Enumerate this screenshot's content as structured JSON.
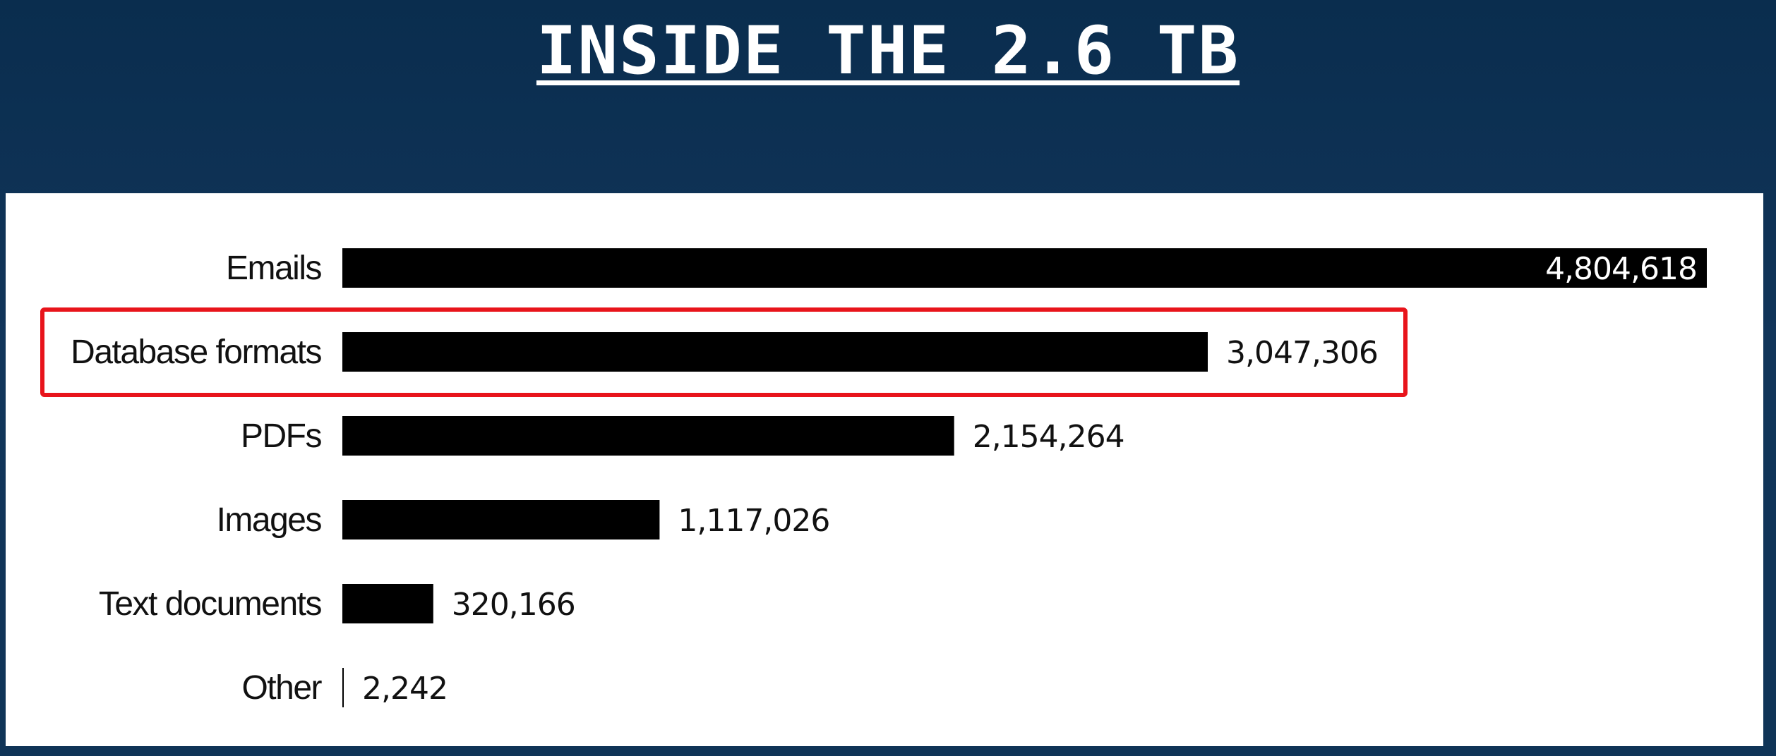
{
  "title": "INSIDE THE 2.6 TB",
  "colors": {
    "background": "#0e3256",
    "panel": "#ffffff",
    "bar": "#000000",
    "highlight": "#e8141b",
    "value_inside": "#ffffff",
    "value_outside": "#111111"
  },
  "chart_data": {
    "type": "bar",
    "orientation": "horizontal",
    "categories": [
      "Emails",
      "Database formats",
      "PDFs",
      "Images",
      "Text documents",
      "Other"
    ],
    "values": [
      4804618,
      3047306,
      2154264,
      1117026,
      320166,
      2242
    ],
    "value_labels": [
      "4,804,618",
      "3,047,306",
      "2,154,264",
      "1,117,026",
      "320,166",
      "2,242"
    ],
    "xlim": [
      0,
      4804618
    ],
    "grid": false,
    "legend": "none",
    "highlighted_category": "Database formats"
  }
}
